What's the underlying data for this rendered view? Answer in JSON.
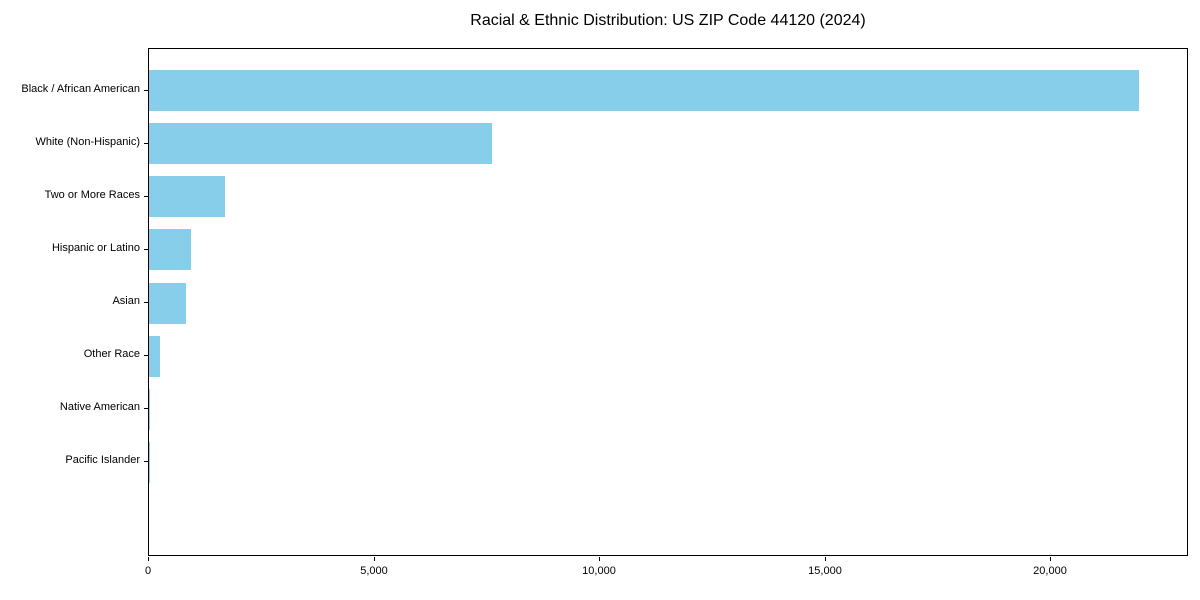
{
  "chart_data": {
    "type": "bar",
    "orientation": "horizontal",
    "title": "Racial & Ethnic Distribution: US ZIP Code 44120 (2024)",
    "categories": [
      "Black / African American",
      "White (Non-Hispanic)",
      "Two or More Races",
      "Hispanic or Latino",
      "Asian",
      "Other Race",
      "Native American",
      "Pacific Islander"
    ],
    "values": [
      21950,
      7600,
      1690,
      920,
      830,
      240,
      20,
      10
    ],
    "xlabel": "",
    "ylabel": "",
    "xlim": [
      0,
      23050
    ],
    "xticks": [
      0,
      5000,
      10000,
      15000,
      20000
    ],
    "xtick_labels": [
      "0",
      "5,000",
      "10,000",
      "15,000",
      "20,000"
    ],
    "bar_color": "#87CEEB",
    "spine_color": "#000000",
    "grid": false,
    "legend": null
  }
}
